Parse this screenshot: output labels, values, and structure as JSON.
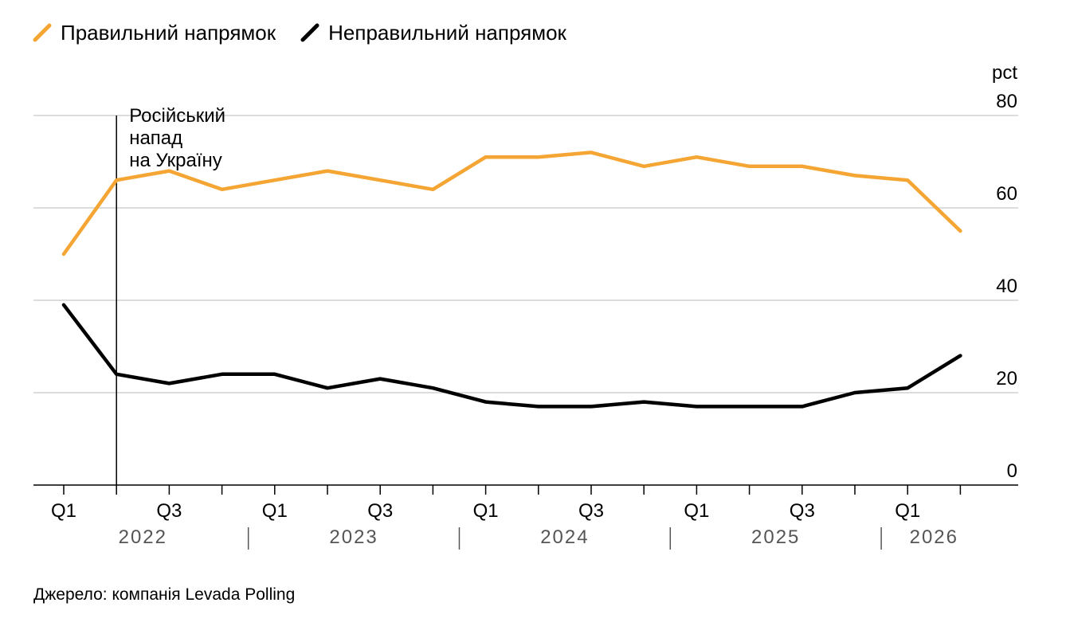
{
  "legend": [
    {
      "label": "Правильний напрямок",
      "color": "#f5a533"
    },
    {
      "label": "Неправильний напрямок",
      "color": "#000000"
    }
  ],
  "source": "Джерело: компанія Levada Polling",
  "chart_data": {
    "type": "line",
    "unit_label": "pct",
    "ylim": [
      0,
      80
    ],
    "yticks": [
      0,
      20,
      40,
      60,
      80
    ],
    "grid": true,
    "y_axis_side": "right",
    "legend_position": "top-left",
    "x": [
      "2022 Q1",
      "2022 Q2",
      "2022 Q3",
      "2022 Q4",
      "2023 Q1",
      "2023 Q2",
      "2023 Q3",
      "2023 Q4",
      "2024 Q1",
      "2024 Q2",
      "2024 Q3",
      "2024 Q4",
      "2025 Q1",
      "2025 Q2",
      "2025 Q3",
      "2025 Q4",
      "2026 Q1",
      "2026 Q2"
    ],
    "xtick_labels": [
      {
        "index": 0,
        "label": "Q1"
      },
      {
        "index": 2,
        "label": "Q3"
      },
      {
        "index": 4,
        "label": "Q1"
      },
      {
        "index": 6,
        "label": "Q3"
      },
      {
        "index": 8,
        "label": "Q1"
      },
      {
        "index": 10,
        "label": "Q3"
      },
      {
        "index": 12,
        "label": "Q1"
      },
      {
        "index": 14,
        "label": "Q3"
      },
      {
        "index": 16,
        "label": "Q1"
      }
    ],
    "years": [
      {
        "label": "2022",
        "start": 0,
        "end": 3
      },
      {
        "label": "2023",
        "start": 4,
        "end": 7
      },
      {
        "label": "2024",
        "start": 8,
        "end": 11
      },
      {
        "label": "2025",
        "start": 12,
        "end": 15
      },
      {
        "label": "2026",
        "start": 16,
        "end": 17
      }
    ],
    "series": [
      {
        "name": "Правильний напрямок",
        "color": "#f5a533",
        "values": [
          50,
          66,
          68,
          64,
          66,
          68,
          66,
          64,
          71,
          71,
          72,
          69,
          71,
          69,
          69,
          67,
          66,
          55
        ]
      },
      {
        "name": "Неправильний напрямок",
        "color": "#000000",
        "values": [
          39,
          24,
          22,
          24,
          24,
          21,
          23,
          21,
          18,
          17,
          17,
          18,
          17,
          17,
          17,
          20,
          21,
          28
        ]
      }
    ],
    "annotation": {
      "index": 1,
      "lines": [
        "Російський",
        "напад",
        "на Україну"
      ]
    }
  }
}
